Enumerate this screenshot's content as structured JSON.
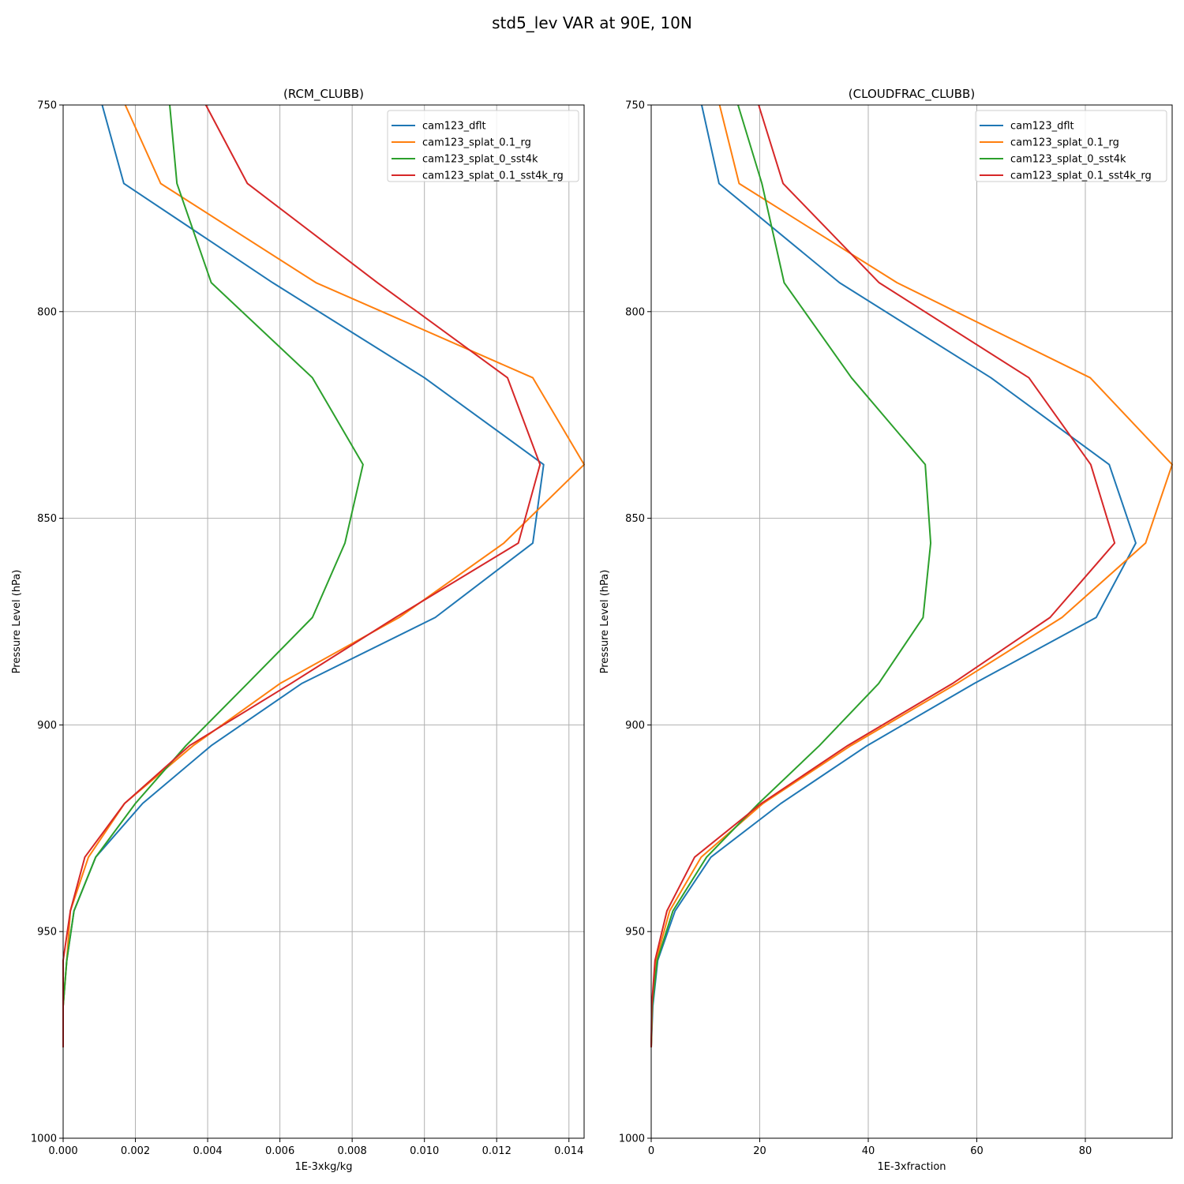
{
  "figure": {
    "suptitle": "std5_lev VAR at 90E, 10N"
  },
  "colors": {
    "cam123_dflt": "#1f77b4",
    "cam123_splat_0.1_rg": "#ff7f0e",
    "cam123_splat_0_sst4k": "#2ca02c",
    "cam123_splat_0.1_sst4k_rg": "#d62728",
    "grid": "#b0b0b0"
  },
  "chart_data": [
    {
      "type": "line",
      "title": "(RCM_CLUBB)",
      "xlabel": "1E-3xkg/kg",
      "ylabel": "Pressure Level (hPa)",
      "xlim": [
        0,
        0.01442
      ],
      "ylim": [
        1000,
        750
      ],
      "y_inverted": true,
      "xticks": [
        0,
        0.002,
        0.004,
        0.006,
        0.008,
        0.01,
        0.012,
        0.014
      ],
      "xtick_labels": [
        "0.000",
        "0.002",
        "0.004",
        "0.006",
        "0.008",
        "0.010",
        "0.012",
        "0.014"
      ],
      "yticks": [
        750,
        800,
        850,
        900,
        950,
        1000
      ],
      "ytick_labels": [
        "750",
        "800",
        "850",
        "900",
        "950",
        "1000"
      ],
      "grid": true,
      "legend_loc": "upper right",
      "levels": [
        750,
        769,
        793,
        816,
        837,
        856,
        874,
        890,
        905,
        919,
        932,
        945,
        957,
        968,
        978
      ],
      "series": [
        {
          "name": "cam123_dflt",
          "values": [
            0.00108,
            0.00168,
            0.0058,
            0.01,
            0.0133,
            0.013,
            0.0103,
            0.0066,
            0.0041,
            0.0022,
            0.0009,
            0.0003,
            0.0001,
            0.0,
            0.0
          ]
        },
        {
          "name": "cam123_splat_0.1_rg",
          "values": [
            0.00172,
            0.0027,
            0.007,
            0.013,
            0.01442,
            0.0122,
            0.0093,
            0.006,
            0.0036,
            0.0017,
            0.0007,
            0.0002,
            0.0001,
            0.0,
            0.0
          ]
        },
        {
          "name": "cam123_splat_0_sst4k",
          "values": [
            0.00295,
            0.00315,
            0.0041,
            0.0069,
            0.0083,
            0.0078,
            0.0069,
            0.0051,
            0.0034,
            0.002,
            0.0009,
            0.0003,
            0.0001,
            0.0,
            0.0
          ]
        },
        {
          "name": "cam123_splat_0.1_sst4k_rg",
          "values": [
            0.00395,
            0.0051,
            0.0087,
            0.0123,
            0.0132,
            0.0126,
            0.0092,
            0.0063,
            0.0035,
            0.0017,
            0.0006,
            0.0002,
            0.0,
            0.0,
            0.0
          ]
        }
      ]
    },
    {
      "type": "line",
      "title": "(CLOUDFRAC_CLUBB)",
      "xlabel": "1E-3xfraction",
      "ylabel": "Pressure Level (hPa)",
      "xlim": [
        0,
        96
      ],
      "ylim": [
        1000,
        750
      ],
      "y_inverted": true,
      "xticks": [
        0,
        20,
        40,
        60,
        80
      ],
      "xtick_labels": [
        "0",
        "20",
        "40",
        "60",
        "80"
      ],
      "yticks": [
        750,
        800,
        850,
        900,
        950,
        1000
      ],
      "ytick_labels": [
        "750",
        "800",
        "850",
        "900",
        "950",
        "1000"
      ],
      "grid": true,
      "legend_loc": "upper right",
      "levels": [
        750,
        769,
        793,
        816,
        837,
        856,
        874,
        890,
        905,
        919,
        932,
        945,
        957,
        968,
        978
      ],
      "series": [
        {
          "name": "cam123_dflt",
          "values": [
            9.3,
            12.5,
            34.7,
            62.6,
            84.4,
            89.3,
            82.0,
            59.5,
            39.8,
            23.9,
            11.0,
            4.4,
            1.2,
            0.3,
            0.0
          ]
        },
        {
          "name": "cam123_splat_0.1_rg",
          "values": [
            12.6,
            16.2,
            45.3,
            80.9,
            96.0,
            91.1,
            75.7,
            56.3,
            36.8,
            20.6,
            9.2,
            3.4,
            0.9,
            0.2,
            0.0
          ]
        },
        {
          "name": "cam123_splat_0_sst4k",
          "values": [
            16.0,
            20.4,
            24.5,
            36.9,
            50.5,
            51.5,
            50.1,
            41.9,
            31.0,
            19.8,
            10.2,
            4.0,
            1.1,
            0.2,
            0.0
          ]
        },
        {
          "name": "cam123_splat_0.1_sst4k_rg",
          "values": [
            19.8,
            24.3,
            42.0,
            69.6,
            81.0,
            85.4,
            73.5,
            55.5,
            36.2,
            20.3,
            8.0,
            2.9,
            0.7,
            0.1,
            0.0
          ]
        }
      ]
    }
  ]
}
